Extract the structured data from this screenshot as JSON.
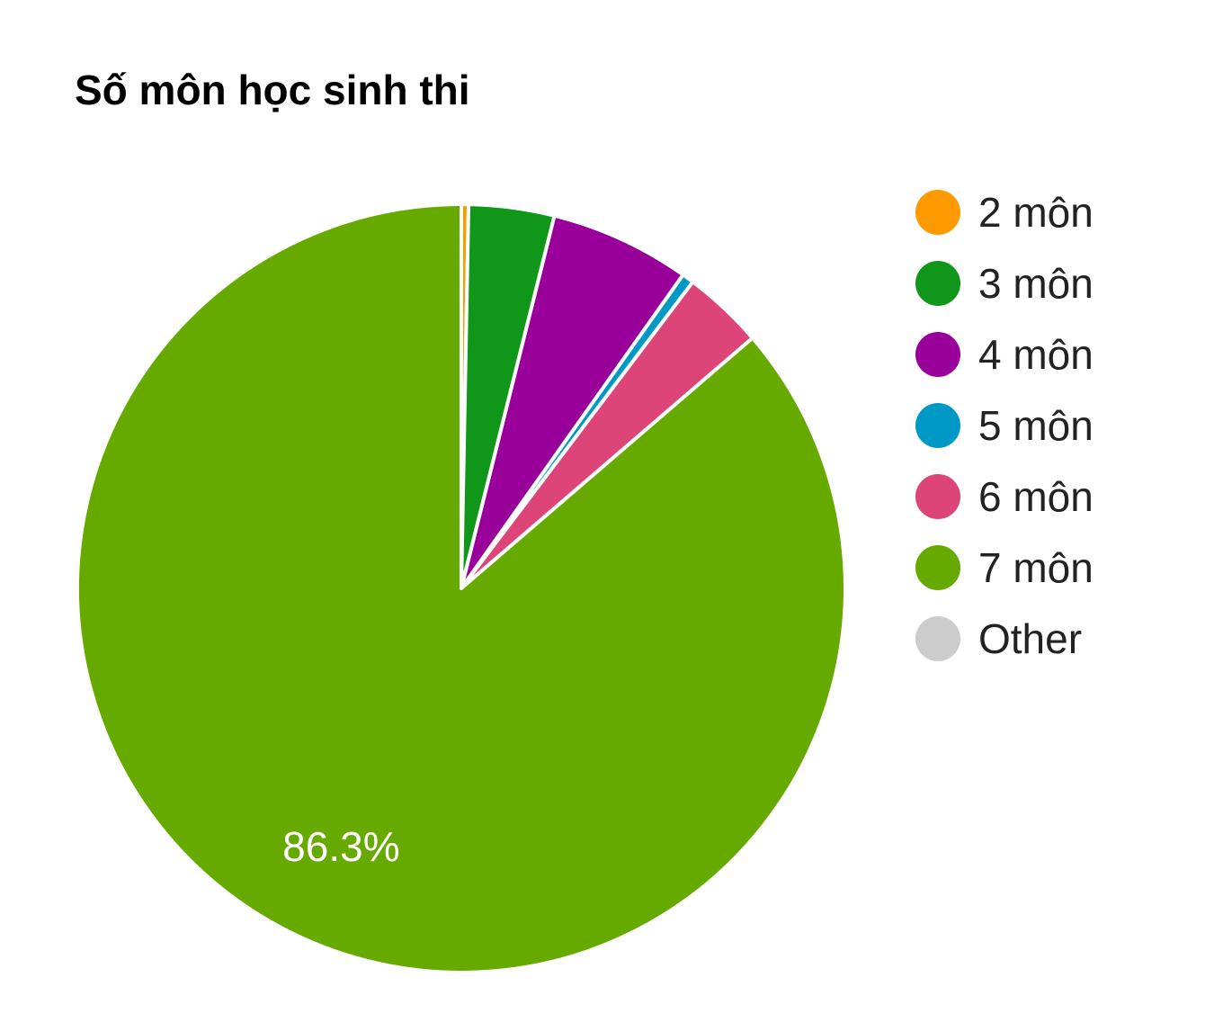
{
  "chart_data": {
    "type": "pie",
    "title": "Số môn học sinh thi",
    "categories": [
      "2 môn",
      "3 môn",
      "4 môn",
      "5 môn",
      "6 môn",
      "7 môn",
      "Other"
    ],
    "values": [
      0.3,
      3.6,
      5.9,
      0.5,
      3.4,
      86.3,
      0.0
    ],
    "colors": [
      "#ff9900",
      "#109618",
      "#990099",
      "#0099c6",
      "#dd4477",
      "#66aa00",
      "#cccccc"
    ],
    "slice_labels": [
      "",
      "",
      "",
      "",
      "",
      "86.3%",
      ""
    ],
    "start_angle_deg": 0,
    "direction": "clockwise",
    "legend_position": "right"
  }
}
